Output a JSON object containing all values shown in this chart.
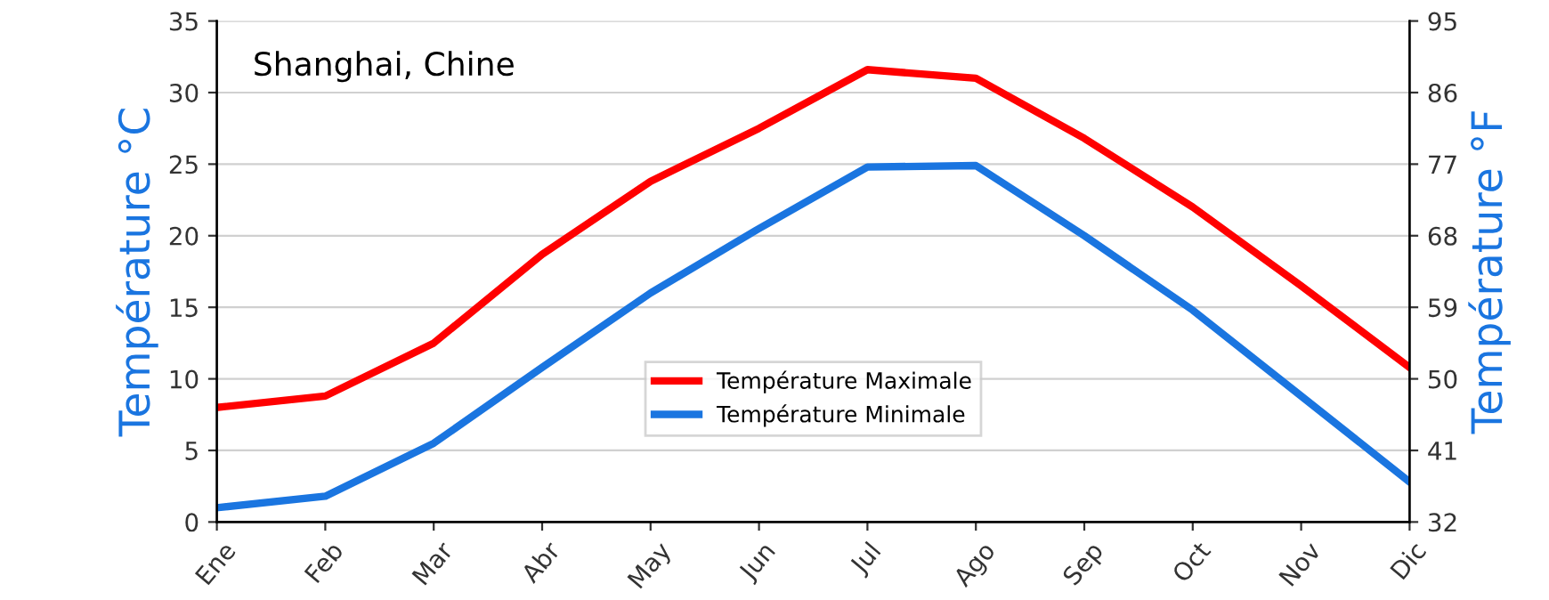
{
  "chart_data": {
    "type": "line",
    "title": "Shanghai, Chine",
    "ylabel": "Température °C",
    "y2label": "Température °F",
    "categories": [
      "Ene",
      "Feb",
      "Mar",
      "Abr",
      "May",
      "Jun",
      "Jul",
      "Ago",
      "Sep",
      "Oct",
      "Nov",
      "Dic"
    ],
    "series": [
      {
        "name": "Température Maximale",
        "color": "#ff0000",
        "values": [
          8,
          8.8,
          12.5,
          18.7,
          23.8,
          27.5,
          31.6,
          31,
          26.8,
          22,
          16.5,
          10.8
        ]
      },
      {
        "name": "Température Minimale",
        "color": "#1a75e0",
        "values": [
          1,
          1.8,
          5.5,
          10.8,
          16,
          20.5,
          24.8,
          24.9,
          20,
          14.8,
          8.8,
          2.8
        ]
      }
    ],
    "ylim": [
      0,
      35
    ],
    "yticks": [
      0,
      5,
      10,
      15,
      20,
      25,
      30,
      35
    ],
    "y2lim": [
      32,
      95
    ],
    "y2ticks": [
      32,
      41,
      50,
      59,
      68,
      77,
      86,
      95
    ],
    "grid": "y",
    "legend": "bottom",
    "line_style": "solid",
    "marker": "none"
  }
}
